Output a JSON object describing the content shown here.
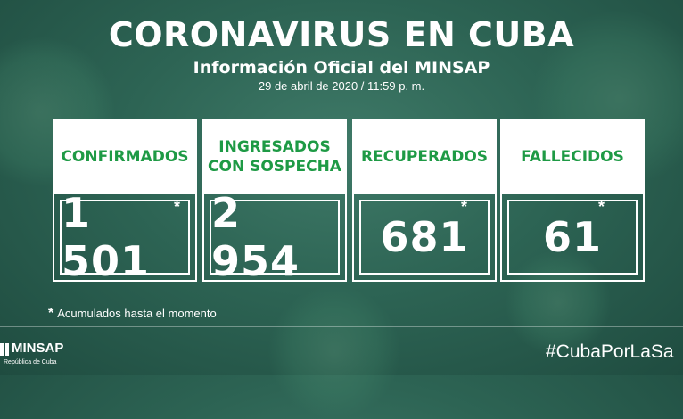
{
  "header": {
    "title": "CORONAVIRUS EN CUBA",
    "subtitle": "Información Oficial del MINSAP",
    "date": "29 de abril de 2020 / 11:59 p. m."
  },
  "cards": [
    {
      "label_line1": "CONFIRMADOS",
      "label_line2": "",
      "value": "1 501",
      "star": "*"
    },
    {
      "label_line1": "INGRESADOS",
      "label_line2": "CON SOSPECHA",
      "value": "2 954",
      "star": ""
    },
    {
      "label_line1": "RECUPERADOS",
      "label_line2": "",
      "value": "681",
      "star": "*"
    },
    {
      "label_line1": "FALLECIDOS",
      "label_line2": "",
      "value": "61",
      "star": "*"
    }
  ],
  "footnote": {
    "star": "*",
    "text": "Acumulados hasta el momento"
  },
  "footer": {
    "logo_name": "MINSAP",
    "logo_sub": "República de Cuba",
    "hashtag": "#CubaPorLaSa"
  },
  "colors": {
    "accent_green": "#1e9a45",
    "background": "#2d6454"
  }
}
